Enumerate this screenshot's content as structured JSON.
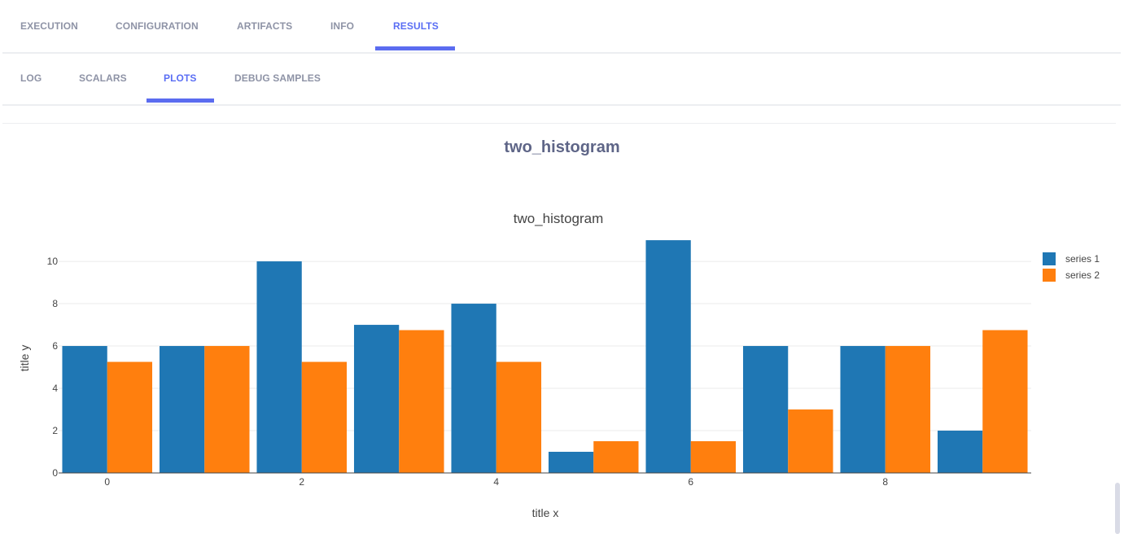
{
  "tabs": [
    "EXECUTION",
    "CONFIGURATION",
    "ARTIFACTS",
    "INFO",
    "RESULTS"
  ],
  "active_tab": "RESULTS",
  "subtabs": [
    "LOG",
    "SCALARS",
    "PLOTS",
    "DEBUG SAMPLES"
  ],
  "active_subtab": "PLOTS",
  "plot_heading": "two_histogram",
  "colors": {
    "accent": "#5a6ef4",
    "series1": "#1f77b4",
    "series2": "#ff7f0e"
  },
  "chart_data": {
    "type": "bar",
    "title": "two_histogram",
    "xlabel": "title x",
    "ylabel": "title y",
    "x": [
      0,
      1,
      2,
      3,
      4,
      5,
      6,
      7,
      8,
      9
    ],
    "x_ticks": [
      "0",
      "2",
      "4",
      "6",
      "8"
    ],
    "y_ticks": [
      "0",
      "2",
      "4",
      "6",
      "8",
      "10"
    ],
    "ylim": [
      0,
      11.58
    ],
    "grid": true,
    "legend_position": "top-right",
    "series": [
      {
        "name": "series 1",
        "color": "#1f77b4",
        "values": [
          6,
          6,
          10,
          7,
          8,
          1,
          11,
          6,
          6,
          2
        ]
      },
      {
        "name": "series 2",
        "color": "#ff7f0e",
        "values": [
          5.25,
          6,
          5.25,
          6.75,
          5.25,
          1.5,
          1.5,
          3,
          6,
          6.75
        ]
      }
    ]
  }
}
